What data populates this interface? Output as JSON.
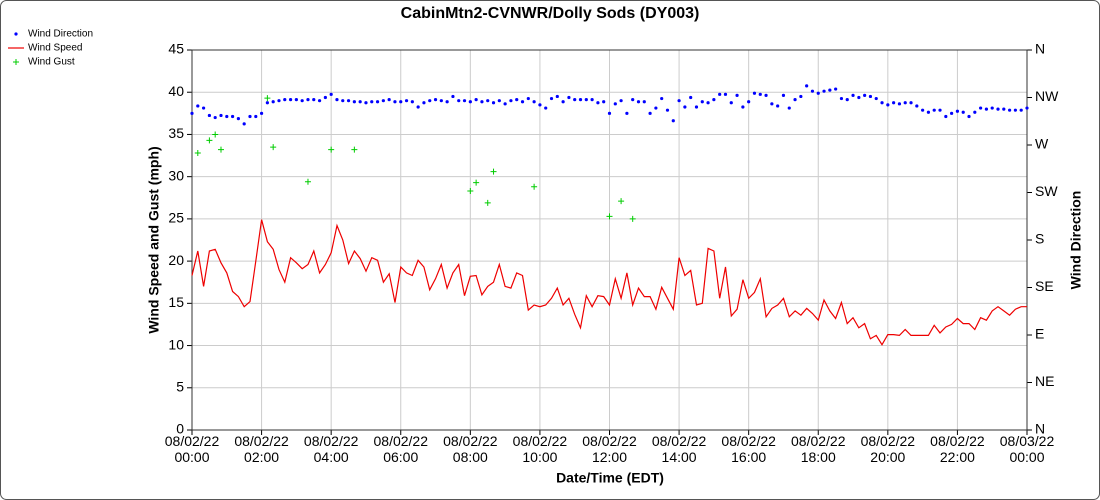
{
  "chart_data": {
    "type": "line",
    "title": "CabinMtn2-CVNWR/Dolly Sods (DY003)",
    "x_label": "Date/Time (EDT)",
    "y_label": "Wind Speed and Gust (mph)",
    "y2_label": "Wind Direction",
    "grid": true,
    "legend": "top-left",
    "xlim": [
      "08/02/22 00:00",
      "08/03/22 00:00"
    ],
    "xticks": [
      "08/02/22 00:00",
      "08/02/22 02:00",
      "08/02/22 04:00",
      "08/02/22 06:00",
      "08/02/22 08:00",
      "08/02/22 10:00",
      "08/02/22 12:00",
      "08/02/22 14:00",
      "08/02/22 16:00",
      "08/02/22 18:00",
      "08/02/22 20:00",
      "08/02/22 22:00",
      "08/03/22 00:00"
    ],
    "ylim": [
      0,
      45
    ],
    "yticks": [
      0,
      5,
      10,
      15,
      20,
      25,
      30,
      35,
      40,
      45
    ],
    "y2lim": [
      0,
      360
    ],
    "y2ticks": [
      {
        "value": 0,
        "label": "N"
      },
      {
        "value": 45,
        "label": "NE"
      },
      {
        "value": 90,
        "label": "E"
      },
      {
        "value": 135,
        "label": "SE"
      },
      {
        "value": 180,
        "label": "S"
      },
      {
        "value": 225,
        "label": "SW"
      },
      {
        "value": 270,
        "label": "W"
      },
      {
        "value": 315,
        "label": "NW"
      },
      {
        "value": 360,
        "label": "N"
      }
    ],
    "x": [
      "08/02/22 00:00",
      "08/02/22 00:10",
      "08/02/22 00:20",
      "08/02/22 00:30",
      "08/02/22 00:40",
      "08/02/22 00:50",
      "08/02/22 01:00",
      "08/02/22 01:10",
      "08/02/22 01:20",
      "08/02/22 01:30",
      "08/02/22 01:40",
      "08/02/22 01:50",
      "08/02/22 02:00",
      "08/02/22 02:10",
      "08/02/22 02:20",
      "08/02/22 02:30",
      "08/02/22 02:40",
      "08/02/22 02:50",
      "08/02/22 03:00",
      "08/02/22 03:10",
      "08/02/22 03:20",
      "08/02/22 03:30",
      "08/02/22 03:40",
      "08/02/22 03:50",
      "08/02/22 04:00",
      "08/02/22 04:10",
      "08/02/22 04:20",
      "08/02/22 04:30",
      "08/02/22 04:40",
      "08/02/22 04:50",
      "08/02/22 05:00",
      "08/02/22 05:10",
      "08/02/22 05:20",
      "08/02/22 05:30",
      "08/02/22 05:40",
      "08/02/22 05:50",
      "08/02/22 06:00",
      "08/02/22 06:10",
      "08/02/22 06:20",
      "08/02/22 06:30",
      "08/02/22 06:40",
      "08/02/22 06:50",
      "08/02/22 07:00",
      "08/02/22 07:10",
      "08/02/22 07:20",
      "08/02/22 07:30",
      "08/02/22 07:40",
      "08/02/22 07:50",
      "08/02/22 08:00",
      "08/02/22 08:10",
      "08/02/22 08:20",
      "08/02/22 08:30",
      "08/02/22 08:40",
      "08/02/22 08:50",
      "08/02/22 09:00",
      "08/02/22 09:10",
      "08/02/22 09:20",
      "08/02/22 09:30",
      "08/02/22 09:40",
      "08/02/22 09:50",
      "08/02/22 10:00",
      "08/02/22 10:10",
      "08/02/22 10:20",
      "08/02/22 10:30",
      "08/02/22 10:40",
      "08/02/22 10:50",
      "08/02/22 11:00",
      "08/02/22 11:10",
      "08/02/22 11:20",
      "08/02/22 11:30",
      "08/02/22 11:40",
      "08/02/22 11:50",
      "08/02/22 12:00",
      "08/02/22 12:10",
      "08/02/22 12:20",
      "08/02/22 12:30",
      "08/02/22 12:40",
      "08/02/22 12:50",
      "08/02/22 13:00",
      "08/02/22 13:10",
      "08/02/22 13:20",
      "08/02/22 13:30",
      "08/02/22 13:40",
      "08/02/22 13:50",
      "08/02/22 14:00",
      "08/02/22 14:10",
      "08/02/22 14:20",
      "08/02/22 14:30",
      "08/02/22 14:40",
      "08/02/22 14:50",
      "08/02/22 15:00",
      "08/02/22 15:10",
      "08/02/22 15:20",
      "08/02/22 15:30",
      "08/02/22 15:40",
      "08/02/22 15:50",
      "08/02/22 16:00",
      "08/02/22 16:10",
      "08/02/22 16:20",
      "08/02/22 16:30",
      "08/02/22 16:40",
      "08/02/22 16:50",
      "08/02/22 17:00",
      "08/02/22 17:10",
      "08/02/22 17:20",
      "08/02/22 17:30",
      "08/02/22 17:40",
      "08/02/22 17:50",
      "08/02/22 18:00",
      "08/02/22 18:10",
      "08/02/22 18:20",
      "08/02/22 18:30",
      "08/02/22 18:40",
      "08/02/22 18:50",
      "08/02/22 19:00",
      "08/02/22 19:10",
      "08/02/22 19:20",
      "08/02/22 19:30",
      "08/02/22 19:40",
      "08/02/22 19:50",
      "08/02/22 20:00",
      "08/02/22 20:10",
      "08/02/22 20:20",
      "08/02/22 20:30",
      "08/02/22 20:40",
      "08/02/22 20:50",
      "08/02/22 21:00",
      "08/02/22 21:10",
      "08/02/22 21:20",
      "08/02/22 21:30",
      "08/02/22 21:40",
      "08/02/22 21:50",
      "08/02/22 22:00",
      "08/02/22 22:10",
      "08/02/22 22:20",
      "08/02/22 22:30",
      "08/02/22 22:40",
      "08/02/22 22:50",
      "08/02/22 23:00",
      "08/02/22 23:10",
      "08/02/22 23:20",
      "08/02/22 23:30",
      "08/02/22 23:40",
      "08/02/22 23:50",
      "08/03/22 00:00"
    ],
    "series": [
      {
        "name": "Wind Direction",
        "type": "scatter",
        "marker": "dot",
        "color": "#0000ff",
        "axis": "y2",
        "values": [
          300,
          307,
          305,
          298,
          296,
          298,
          297,
          297,
          295,
          290,
          297,
          297,
          300,
          310,
          311,
          312,
          313,
          313,
          313,
          312,
          313,
          313,
          312,
          315,
          318,
          313,
          312,
          312,
          311,
          311,
          310,
          311,
          311,
          312,
          313,
          311,
          311,
          312,
          311,
          306,
          310,
          312,
          313,
          312,
          311,
          316,
          312,
          312,
          311,
          313,
          311,
          312,
          310,
          312,
          309,
          312,
          313,
          311,
          314,
          311,
          308,
          305,
          314,
          316,
          311,
          315,
          313,
          313,
          313,
          313,
          310,
          311,
          300,
          309,
          312,
          300,
          313,
          311,
          311,
          300,
          305,
          314,
          303,
          293,
          312,
          306,
          315,
          306,
          311,
          310,
          313,
          318,
          318,
          310,
          317,
          306,
          311,
          319,
          318,
          317,
          309,
          307,
          317,
          305,
          313,
          316,
          326,
          321,
          319,
          321,
          322,
          323,
          314,
          313,
          317,
          315,
          317,
          316,
          314,
          310,
          308,
          310,
          309,
          310,
          310,
          307,
          303,
          301,
          303,
          303,
          297,
          300,
          302,
          301,
          297,
          301,
          305,
          304,
          305,
          304,
          304,
          303,
          303,
          303,
          305
        ]
      },
      {
        "name": "Wind Speed",
        "type": "line",
        "color": "#ee0000",
        "values": [
          18.3,
          21.2,
          17.0,
          21.2,
          21.4,
          19.8,
          18.6,
          16.4,
          15.8,
          14.6,
          15.2,
          20.0,
          24.9,
          22.3,
          21.4,
          19.0,
          17.5,
          20.4,
          19.8,
          19.1,
          19.6,
          21.2,
          18.6,
          19.6,
          21.0,
          24.2,
          22.5,
          19.7,
          21.2,
          20.3,
          18.8,
          20.4,
          20.1,
          17.5,
          18.5,
          15.1,
          19.3,
          18.6,
          18.3,
          20.1,
          19.3,
          16.6,
          17.9,
          19.6,
          16.8,
          18.6,
          19.6,
          15.9,
          18.2,
          18.3,
          16.0,
          17.0,
          17.5,
          19.6,
          17.0,
          16.8,
          18.6,
          18.3,
          14.2,
          14.8,
          14.6,
          14.8,
          15.6,
          16.8,
          14.8,
          15.6,
          13.7,
          12.1,
          15.9,
          14.6,
          15.9,
          15.8,
          14.8,
          17.9,
          15.6,
          18.6,
          14.8,
          16.8,
          15.8,
          15.8,
          14.3,
          16.9,
          15.6,
          14.3,
          20.4,
          18.3,
          18.9,
          14.8,
          15.0,
          21.5,
          21.2,
          15.6,
          19.3,
          13.5,
          14.3,
          17.8,
          15.6,
          16.3,
          17.9,
          13.4,
          14.4,
          14.8,
          15.6,
          13.4,
          14.1,
          13.6,
          14.4,
          13.8,
          13.0,
          15.4,
          14.1,
          13.2,
          15.1,
          12.6,
          13.3,
          12.1,
          12.6,
          10.8,
          11.2,
          10.1,
          11.3,
          11.3,
          11.2,
          11.9,
          11.2,
          11.2,
          11.2,
          11.2,
          12.4,
          11.5,
          12.2,
          12.5,
          13.2,
          12.6,
          12.6,
          11.9,
          13.3,
          13.0,
          14.1,
          14.6,
          14.1,
          13.6,
          14.3,
          14.6,
          14.6
        ]
      },
      {
        "name": "Wind Gust",
        "type": "scatter",
        "marker": "plus",
        "color": "#00cc00",
        "x": [
          "08/02/22 00:10",
          "08/02/22 00:30",
          "08/02/22 00:40",
          "08/02/22 00:50",
          "08/02/22 02:10",
          "08/02/22 02:20",
          "08/02/22 03:20",
          "08/02/22 04:00",
          "08/02/22 04:40",
          "08/02/22 08:00",
          "08/02/22 08:10",
          "08/02/22 08:30",
          "08/02/22 08:40",
          "08/02/22 09:50",
          "08/02/22 12:00",
          "08/02/22 12:20",
          "08/02/22 12:40"
        ],
        "values": [
          32.8,
          34.3,
          35.0,
          33.2,
          39.3,
          33.5,
          29.4,
          33.2,
          33.2,
          28.3,
          29.3,
          26.9,
          30.6,
          28.8,
          25.3,
          27.1,
          25.0
        ]
      }
    ]
  }
}
